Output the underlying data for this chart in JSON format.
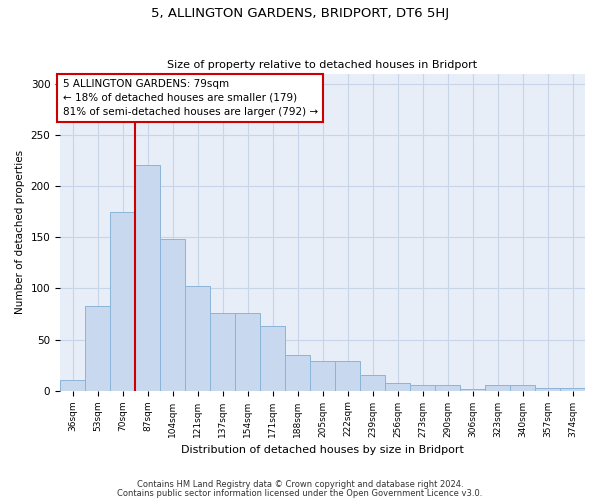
{
  "title": "5, ALLINGTON GARDENS, BRIDPORT, DT6 5HJ",
  "subtitle": "Size of property relative to detached houses in Bridport",
  "xlabel": "Distribution of detached houses by size in Bridport",
  "ylabel": "Number of detached properties",
  "categories": [
    "36sqm",
    "53sqm",
    "70sqm",
    "87sqm",
    "104sqm",
    "121sqm",
    "137sqm",
    "154sqm",
    "171sqm",
    "188sqm",
    "205sqm",
    "222sqm",
    "239sqm",
    "256sqm",
    "273sqm",
    "290sqm",
    "306sqm",
    "323sqm",
    "340sqm",
    "357sqm",
    "374sqm"
  ],
  "values": [
    10,
    83,
    175,
    221,
    148,
    102,
    76,
    76,
    63,
    35,
    29,
    29,
    15,
    7,
    5,
    5,
    2,
    5,
    5,
    3,
    3
  ],
  "bar_color": "#c8d8ee",
  "bar_edge_color": "#8ab4d8",
  "vline_x": 2.5,
  "annotation_line1": "5 ALLINGTON GARDENS: 79sqm",
  "annotation_line2": "← 18% of detached houses are smaller (179)",
  "annotation_line3": "81% of semi-detached houses are larger (792) →",
  "annotation_box_color": "#ffffff",
  "annotation_box_edge": "#cc0000",
  "vline_color": "#cc0000",
  "grid_color": "#c8d4e8",
  "background_color": "#e8eef8",
  "ylim": [
    0,
    310
  ],
  "yticks": [
    0,
    50,
    100,
    150,
    200,
    250,
    300
  ],
  "footer_line1": "Contains HM Land Registry data © Crown copyright and database right 2024.",
  "footer_line2": "Contains public sector information licensed under the Open Government Licence v3.0."
}
